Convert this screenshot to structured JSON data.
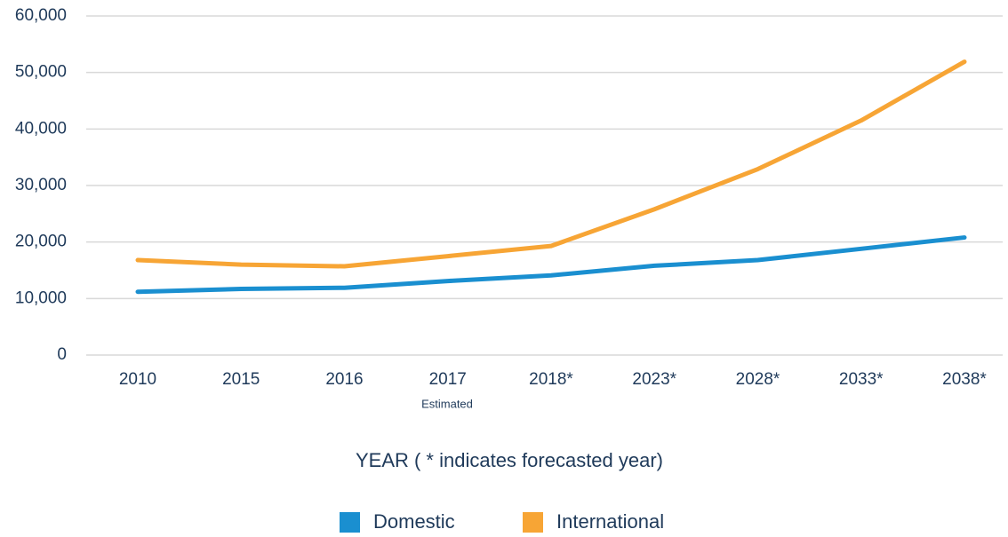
{
  "chart_data": {
    "type": "line",
    "x_label": "YEAR ( * indicates forecasted year)",
    "annotation": "Estimated",
    "categories": [
      "2010",
      "2015",
      "2016",
      "2017",
      "2018*",
      "2023*",
      "2028*",
      "2033*",
      "2038*"
    ],
    "series": [
      {
        "name": "Domestic",
        "color": "#1a8fd0",
        "values": [
          11200,
          11700,
          11900,
          13100,
          14100,
          15800,
          16800,
          18800,
          20800
        ]
      },
      {
        "name": "International",
        "color": "#f7a535",
        "values": [
          16800,
          16000,
          15700,
          17500,
          19300,
          25800,
          32900,
          41500,
          51900
        ]
      }
    ],
    "ylim": [
      0,
      60000
    ],
    "yticks": [
      0,
      {
        "value": 10000,
        "label": "10,000"
      },
      {
        "value": 20000,
        "label": "20,000"
      },
      {
        "value": 30000,
        "label": "30,000"
      },
      {
        "value": 40000,
        "label": "40,000"
      },
      {
        "value": 50000,
        "label": "50,000"
      },
      {
        "value": 60000,
        "label": "60,000"
      }
    ],
    "grid": true
  }
}
